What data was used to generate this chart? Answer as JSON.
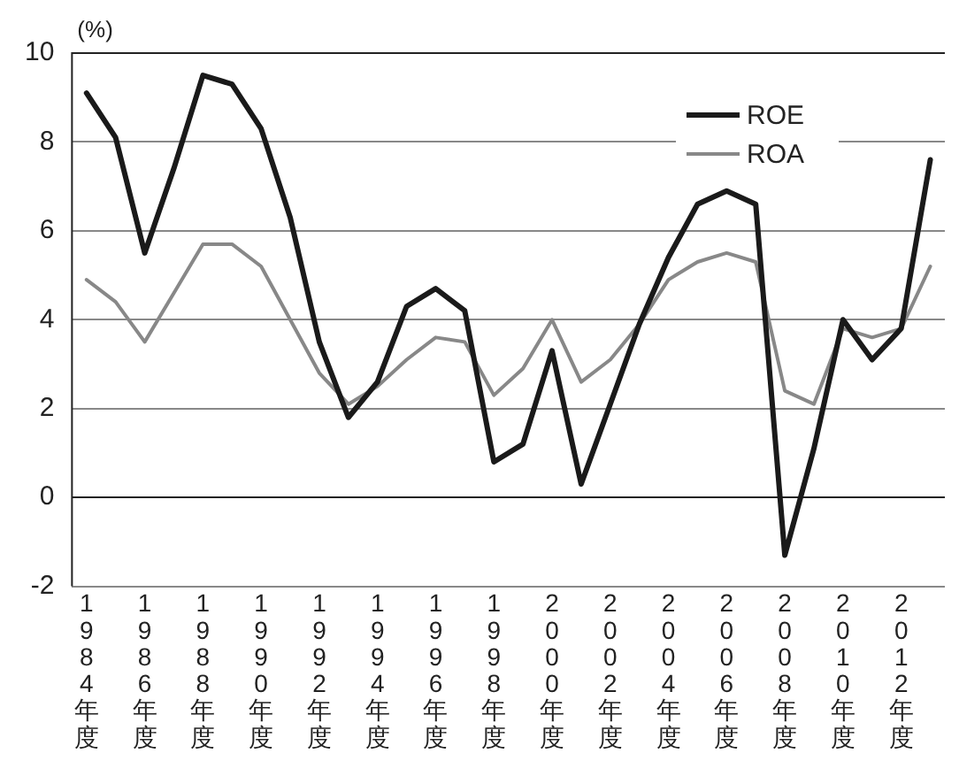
{
  "chart_data": {
    "type": "line",
    "ylabel": "(%)",
    "categories": [
      "1984年度",
      null,
      "1986年度",
      null,
      "1988年度",
      null,
      "1990年度",
      null,
      "1992年度",
      null,
      "1994年度",
      null,
      "1996年度",
      null,
      "1998年度",
      null,
      "2000年度",
      null,
      "2002年度",
      null,
      "2004年度",
      null,
      "2006年度",
      null,
      "2008年度",
      null,
      "2010年度",
      null,
      "2012年度",
      null
    ],
    "series": [
      {
        "name": "ROE",
        "color": "#1a1a1a",
        "values": [
          9.1,
          8.1,
          5.5,
          7.4,
          9.5,
          9.3,
          8.3,
          6.3,
          3.5,
          1.8,
          2.6,
          4.3,
          4.7,
          4.2,
          0.8,
          1.2,
          3.3,
          0.3,
          2.1,
          3.9,
          5.4,
          6.6,
          6.9,
          6.6,
          -1.3,
          1.1,
          4.0,
          3.1,
          3.8,
          7.6
        ]
      },
      {
        "name": "ROA",
        "color": "#888888",
        "values": [
          4.9,
          4.4,
          3.5,
          4.6,
          5.7,
          5.7,
          5.2,
          4.0,
          2.8,
          2.1,
          2.5,
          3.1,
          3.6,
          3.5,
          2.3,
          2.9,
          4.0,
          2.6,
          3.1,
          3.9,
          4.9,
          5.3,
          5.5,
          5.3,
          2.4,
          2.1,
          3.8,
          3.6,
          3.8,
          5.2
        ]
      }
    ],
    "ylim": [
      -2,
      10
    ],
    "yticks": [
      -2,
      0,
      2,
      4,
      6,
      8,
      10
    ],
    "grid": "y",
    "legend": "top right",
    "marker": "none",
    "line_style": "solid"
  }
}
